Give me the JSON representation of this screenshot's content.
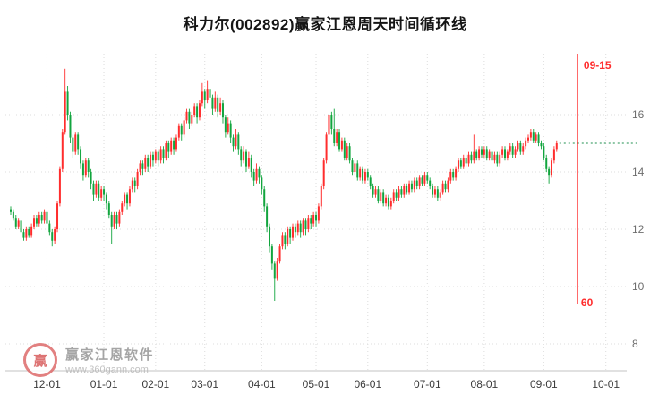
{
  "symbol": "002892",
  "stock_name": "科力尔",
  "watermark": {
    "brand": "赢家江恩软件",
    "url": "www.360gann.com",
    "logo_char": "赢"
  },
  "colors": {
    "up": "#ff2d2d",
    "down": "#12a53e",
    "cycle": "#ff2d2d",
    "price_line": "#1f8f4f",
    "grid": "#dcdcdc",
    "axis": "#c3c3c3",
    "x_label": "#3c3c3c",
    "y_label": "#6e6e6e"
  },
  "chart_data": {
    "type": "candlestick",
    "title": "科力尔(002892)赢家江恩周天时间循环线",
    "y_ticks": [
      16,
      14,
      12,
      10,
      8
    ],
    "ylim": [
      7.0,
      18.1
    ],
    "x_ticks": [
      {
        "label": "12-01",
        "i": 14
      },
      {
        "label": "01-01",
        "i": 36
      },
      {
        "label": "02-01",
        "i": 56
      },
      {
        "label": "03-01",
        "i": 75
      },
      {
        "label": "04-01",
        "i": 97
      },
      {
        "label": "05-01",
        "i": 118
      },
      {
        "label": "06-01",
        "i": 138
      },
      {
        "label": "07-01",
        "i": 161
      },
      {
        "label": "08-01",
        "i": 183
      },
      {
        "label": "09-01",
        "i": 206
      },
      {
        "label": "10-01",
        "i": 230
      }
    ],
    "cycle_line": {
      "label": "09-15",
      "bottom_label": "60",
      "i": 219
    },
    "price_line_value": 15.0,
    "candles": [
      [
        12.7,
        12.8,
        12.5,
        12.6
      ],
      [
        12.6,
        12.7,
        12.3,
        12.4
      ],
      [
        12.4,
        12.5,
        12.0,
        12.1
      ],
      [
        12.1,
        12.4,
        12.0,
        12.3
      ],
      [
        12.3,
        12.4,
        11.8,
        11.9
      ],
      [
        11.9,
        12.0,
        11.6,
        11.7
      ],
      [
        11.7,
        12.1,
        11.6,
        12.0
      ],
      [
        12.0,
        12.1,
        11.7,
        11.8
      ],
      [
        11.8,
        12.2,
        11.7,
        12.1
      ],
      [
        12.1,
        12.5,
        12.0,
        12.4
      ],
      [
        12.4,
        12.5,
        12.1,
        12.2
      ],
      [
        12.2,
        12.6,
        12.1,
        12.5
      ],
      [
        12.5,
        12.6,
        12.2,
        12.3
      ],
      [
        12.3,
        12.7,
        12.2,
        12.6
      ],
      [
        12.6,
        12.7,
        12.1,
        12.2
      ],
      [
        12.2,
        12.3,
        11.8,
        11.9
      ],
      [
        11.9,
        12.0,
        11.4,
        11.6
      ],
      [
        11.6,
        12.1,
        11.5,
        12.0
      ],
      [
        12.0,
        13.0,
        11.9,
        12.9
      ],
      [
        12.9,
        14.2,
        12.8,
        14.1
      ],
      [
        14.1,
        15.5,
        14.0,
        15.4
      ],
      [
        15.4,
        17.6,
        15.3,
        16.8
      ],
      [
        16.8,
        17.0,
        15.8,
        16.0
      ],
      [
        16.0,
        16.1,
        15.0,
        15.2
      ],
      [
        15.2,
        15.3,
        14.5,
        14.7
      ],
      [
        14.7,
        15.4,
        14.6,
        15.3
      ],
      [
        15.3,
        15.4,
        14.6,
        14.8
      ],
      [
        14.8,
        14.9,
        14.1,
        14.3
      ],
      [
        14.3,
        14.4,
        13.7,
        13.9
      ],
      [
        13.9,
        14.5,
        13.8,
        14.4
      ],
      [
        14.4,
        14.5,
        13.8,
        14.0
      ],
      [
        14.0,
        14.1,
        13.4,
        13.6
      ],
      [
        13.6,
        13.7,
        13.0,
        13.2
      ],
      [
        13.2,
        13.7,
        13.1,
        13.6
      ],
      [
        13.6,
        13.7,
        13.0,
        13.1
      ],
      [
        13.1,
        13.5,
        13.0,
        13.4
      ],
      [
        13.4,
        13.5,
        13.0,
        13.2
      ],
      [
        13.2,
        13.3,
        12.7,
        12.9
      ],
      [
        12.9,
        13.0,
        12.4,
        12.5
      ],
      [
        12.5,
        12.6,
        11.5,
        12.1
      ],
      [
        12.1,
        12.6,
        12.0,
        12.5
      ],
      [
        12.5,
        12.6,
        12.0,
        12.2
      ],
      [
        12.2,
        12.7,
        12.1,
        12.6
      ],
      [
        12.6,
        13.0,
        12.5,
        12.9
      ],
      [
        12.9,
        13.3,
        12.8,
        13.2
      ],
      [
        13.2,
        13.3,
        12.7,
        12.9
      ],
      [
        12.9,
        13.5,
        12.8,
        13.4
      ],
      [
        13.4,
        13.8,
        13.3,
        13.7
      ],
      [
        13.7,
        13.8,
        13.3,
        13.5
      ],
      [
        13.5,
        14.1,
        13.4,
        14.0
      ],
      [
        14.0,
        14.4,
        13.9,
        14.3
      ],
      [
        14.3,
        14.4,
        13.9,
        14.1
      ],
      [
        14.1,
        14.6,
        14.0,
        14.5
      ],
      [
        14.5,
        14.6,
        14.0,
        14.2
      ],
      [
        14.2,
        14.7,
        14.1,
        14.6
      ],
      [
        14.6,
        14.7,
        14.2,
        14.4
      ],
      [
        14.4,
        14.8,
        14.3,
        14.7
      ],
      [
        14.7,
        14.8,
        14.2,
        14.4
      ],
      [
        14.4,
        14.9,
        14.3,
        14.8
      ],
      [
        14.8,
        14.9,
        14.3,
        14.5
      ],
      [
        14.5,
        15.1,
        14.4,
        15.0
      ],
      [
        15.0,
        15.1,
        14.5,
        14.7
      ],
      [
        14.7,
        15.2,
        14.6,
        15.1
      ],
      [
        15.1,
        15.2,
        14.6,
        14.8
      ],
      [
        14.8,
        15.3,
        14.7,
        15.2
      ],
      [
        15.2,
        15.7,
        15.1,
        15.6
      ],
      [
        15.6,
        15.7,
        15.1,
        15.3
      ],
      [
        15.3,
        15.9,
        15.2,
        15.8
      ],
      [
        15.8,
        16.2,
        15.7,
        16.1
      ],
      [
        16.1,
        16.2,
        15.5,
        15.7
      ],
      [
        15.7,
        16.1,
        15.6,
        16.0
      ],
      [
        16.0,
        16.4,
        15.9,
        16.3
      ],
      [
        16.3,
        16.4,
        15.7,
        15.9
      ],
      [
        15.9,
        16.5,
        15.8,
        16.4
      ],
      [
        16.4,
        17.1,
        16.3,
        16.8
      ],
      [
        16.8,
        16.9,
        16.2,
        16.5
      ],
      [
        16.5,
        17.2,
        16.4,
        16.9
      ],
      [
        16.9,
        17.0,
        16.3,
        16.6
      ],
      [
        16.6,
        16.7,
        16.0,
        16.2
      ],
      [
        16.2,
        16.8,
        16.1,
        16.6
      ],
      [
        16.6,
        16.7,
        15.9,
        16.1
      ],
      [
        16.1,
        16.6,
        16.0,
        16.4
      ],
      [
        16.4,
        16.5,
        15.7,
        15.9
      ],
      [
        15.9,
        16.0,
        15.2,
        15.4
      ],
      [
        15.4,
        15.9,
        15.3,
        15.7
      ],
      [
        15.7,
        15.8,
        15.0,
        15.2
      ],
      [
        15.2,
        15.3,
        14.7,
        14.9
      ],
      [
        14.9,
        15.5,
        14.8,
        15.3
      ],
      [
        15.3,
        15.4,
        14.6,
        14.8
      ],
      [
        14.8,
        14.9,
        14.2,
        14.4
      ],
      [
        14.4,
        14.9,
        14.3,
        14.7
      ],
      [
        14.7,
        14.8,
        14.0,
        14.2
      ],
      [
        14.2,
        14.7,
        14.1,
        14.5
      ],
      [
        14.5,
        14.6,
        13.8,
        14.0
      ],
      [
        14.0,
        14.1,
        13.5,
        13.7
      ],
      [
        13.7,
        14.3,
        13.6,
        14.1
      ],
      [
        14.1,
        14.2,
        13.6,
        13.8
      ],
      [
        13.8,
        13.9,
        13.2,
        13.4
      ],
      [
        13.4,
        13.5,
        12.6,
        12.8
      ],
      [
        12.8,
        12.9,
        11.9,
        12.1
      ],
      [
        12.1,
        12.2,
        11.2,
        11.4
      ],
      [
        11.4,
        11.5,
        10.6,
        10.8
      ],
      [
        10.8,
        10.9,
        9.5,
        10.3
      ],
      [
        10.3,
        11.0,
        10.2,
        10.9
      ],
      [
        10.9,
        11.5,
        10.8,
        11.4
      ],
      [
        11.4,
        11.9,
        11.3,
        11.8
      ],
      [
        11.8,
        11.9,
        11.3,
        11.5
      ],
      [
        11.5,
        12.1,
        11.4,
        12.0
      ],
      [
        12.0,
        12.1,
        11.5,
        11.7
      ],
      [
        11.7,
        12.2,
        11.6,
        12.1
      ],
      [
        12.1,
        12.2,
        11.7,
        11.9
      ],
      [
        11.9,
        12.3,
        11.8,
        12.2
      ],
      [
        12.2,
        12.3,
        11.7,
        11.9
      ],
      [
        11.9,
        12.4,
        11.8,
        12.3
      ],
      [
        12.3,
        12.4,
        11.8,
        12.0
      ],
      [
        12.0,
        12.5,
        11.9,
        12.4
      ],
      [
        12.4,
        12.5,
        12.0,
        12.2
      ],
      [
        12.2,
        12.6,
        12.1,
        12.5
      ],
      [
        12.5,
        12.6,
        12.1,
        12.3
      ],
      [
        12.3,
        12.9,
        12.2,
        12.8
      ],
      [
        12.8,
        13.6,
        12.7,
        13.5
      ],
      [
        13.5,
        14.5,
        13.4,
        14.4
      ],
      [
        14.4,
        15.4,
        14.3,
        15.3
      ],
      [
        15.3,
        16.5,
        15.2,
        16.0
      ],
      [
        16.0,
        16.1,
        15.3,
        15.5
      ],
      [
        15.5,
        16.2,
        14.9,
        15.0
      ],
      [
        15.0,
        15.5,
        14.9,
        15.4
      ],
      [
        15.4,
        15.5,
        14.7,
        14.8
      ],
      [
        14.8,
        15.2,
        14.7,
        15.1
      ],
      [
        15.1,
        15.2,
        14.4,
        14.5
      ],
      [
        14.5,
        15.0,
        14.4,
        14.9
      ],
      [
        14.9,
        15.0,
        14.3,
        14.4
      ],
      [
        14.4,
        14.5,
        13.9,
        14.0
      ],
      [
        14.0,
        14.4,
        13.9,
        14.3
      ],
      [
        14.3,
        14.4,
        13.7,
        13.8
      ],
      [
        13.8,
        14.2,
        13.7,
        14.1
      ],
      [
        14.1,
        14.2,
        13.6,
        13.7
      ],
      [
        13.7,
        14.1,
        13.6,
        14.0
      ],
      [
        14.0,
        14.1,
        13.7,
        13.8
      ],
      [
        13.8,
        13.9,
        13.4,
        13.5
      ],
      [
        13.5,
        13.6,
        13.1,
        13.2
      ],
      [
        13.2,
        13.5,
        13.1,
        13.4
      ],
      [
        13.4,
        13.5,
        12.9,
        13.0
      ],
      [
        13.0,
        13.4,
        12.9,
        13.3
      ],
      [
        13.3,
        13.4,
        12.8,
        12.9
      ],
      [
        12.9,
        13.2,
        12.8,
        13.1
      ],
      [
        13.1,
        13.2,
        12.7,
        12.8
      ],
      [
        12.8,
        13.1,
        12.7,
        13.0
      ],
      [
        13.0,
        13.4,
        12.9,
        13.3
      ],
      [
        13.3,
        13.4,
        13.0,
        13.1
      ],
      [
        13.1,
        13.5,
        13.0,
        13.4
      ],
      [
        13.4,
        13.5,
        13.1,
        13.2
      ],
      [
        13.2,
        13.6,
        13.1,
        13.5
      ],
      [
        13.5,
        13.6,
        13.2,
        13.3
      ],
      [
        13.3,
        13.7,
        13.2,
        13.6
      ],
      [
        13.6,
        13.7,
        13.3,
        13.4
      ],
      [
        13.4,
        13.8,
        13.3,
        13.7
      ],
      [
        13.7,
        13.8,
        13.4,
        13.5
      ],
      [
        13.5,
        13.9,
        13.4,
        13.8
      ],
      [
        13.8,
        13.9,
        13.5,
        13.6
      ],
      [
        13.6,
        14.0,
        13.5,
        13.9
      ],
      [
        13.9,
        14.0,
        13.6,
        13.7
      ],
      [
        13.7,
        13.8,
        13.4,
        13.5
      ],
      [
        13.5,
        13.6,
        13.1,
        13.2
      ],
      [
        13.2,
        13.5,
        13.1,
        13.4
      ],
      [
        13.4,
        13.5,
        13.0,
        13.1
      ],
      [
        13.1,
        13.4,
        13.0,
        13.3
      ],
      [
        13.3,
        13.7,
        13.2,
        13.6
      ],
      [
        13.6,
        13.7,
        13.3,
        13.4
      ],
      [
        13.4,
        13.8,
        13.3,
        13.7
      ],
      [
        13.7,
        14.1,
        13.6,
        14.0
      ],
      [
        14.0,
        14.1,
        13.7,
        13.8
      ],
      [
        13.8,
        14.2,
        13.7,
        14.1
      ],
      [
        14.1,
        14.5,
        14.0,
        14.4
      ],
      [
        14.4,
        14.5,
        14.1,
        14.2
      ],
      [
        14.2,
        14.6,
        14.1,
        14.5
      ],
      [
        14.5,
        14.6,
        14.2,
        14.3
      ],
      [
        14.3,
        14.7,
        14.2,
        14.6
      ],
      [
        14.6,
        14.7,
        14.3,
        14.4
      ],
      [
        14.4,
        15.3,
        14.3,
        14.7
      ],
      [
        14.7,
        14.8,
        14.4,
        14.5
      ],
      [
        14.5,
        14.9,
        14.4,
        14.8
      ],
      [
        14.8,
        14.9,
        14.5,
        14.6
      ],
      [
        14.6,
        14.9,
        14.5,
        14.8
      ],
      [
        14.8,
        14.9,
        14.4,
        14.5
      ],
      [
        14.5,
        14.8,
        14.4,
        14.7
      ],
      [
        14.7,
        14.8,
        14.3,
        14.4
      ],
      [
        14.4,
        14.7,
        14.3,
        14.6
      ],
      [
        14.6,
        14.7,
        14.2,
        14.3
      ],
      [
        14.3,
        14.7,
        14.2,
        14.6
      ],
      [
        14.6,
        14.9,
        14.5,
        14.8
      ],
      [
        14.8,
        14.9,
        14.4,
        14.5
      ],
      [
        14.5,
        14.8,
        14.4,
        14.7
      ],
      [
        14.7,
        15.0,
        14.6,
        14.9
      ],
      [
        14.9,
        15.0,
        14.5,
        14.6
      ],
      [
        14.6,
        14.9,
        14.5,
        14.8
      ],
      [
        14.8,
        15.1,
        14.7,
        15.0
      ],
      [
        15.0,
        15.1,
        14.6,
        14.7
      ],
      [
        14.7,
        15.0,
        14.6,
        14.9
      ],
      [
        14.9,
        15.2,
        14.8,
        15.1
      ],
      [
        15.1,
        15.3,
        15.0,
        15.2
      ],
      [
        15.2,
        15.5,
        15.1,
        15.4
      ],
      [
        15.4,
        15.5,
        15.0,
        15.1
      ],
      [
        15.1,
        15.4,
        15.0,
        15.3
      ],
      [
        15.3,
        15.4,
        14.9,
        15.0
      ],
      [
        15.0,
        15.1,
        14.8,
        14.9
      ],
      [
        14.9,
        15.0,
        14.4,
        14.5
      ],
      [
        14.5,
        14.6,
        14.0,
        14.1
      ],
      [
        14.1,
        14.2,
        13.6,
        13.9
      ],
      [
        13.9,
        14.5,
        13.8,
        14.4
      ],
      [
        14.4,
        14.9,
        14.3,
        14.8
      ],
      [
        14.8,
        15.1,
        14.7,
        15.0
      ]
    ]
  }
}
